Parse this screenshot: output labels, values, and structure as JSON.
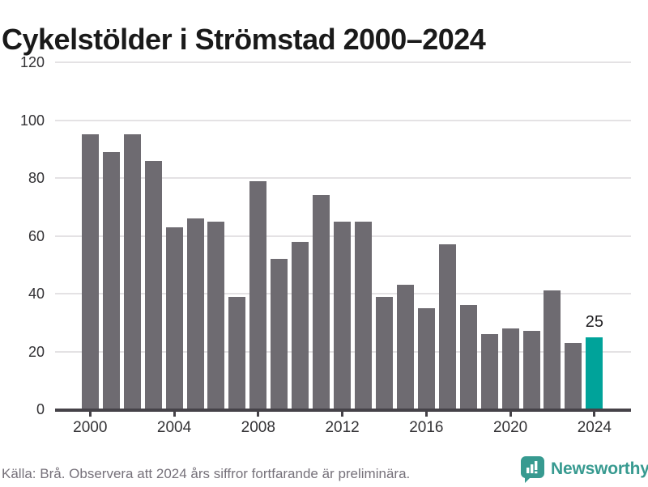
{
  "title": "Cykelstölder i Strömstad 2000–2024",
  "chart_data": {
    "type": "bar",
    "title": "Cykelstölder i Strömstad 2000–2024",
    "x": [
      2000,
      2001,
      2002,
      2003,
      2004,
      2005,
      2006,
      2007,
      2008,
      2009,
      2010,
      2011,
      2012,
      2013,
      2014,
      2015,
      2016,
      2017,
      2018,
      2019,
      2020,
      2021,
      2022,
      2023,
      2024
    ],
    "values": [
      95,
      89,
      95,
      86,
      63,
      66,
      65,
      39,
      79,
      52,
      58,
      74,
      65,
      65,
      39,
      43,
      35,
      57,
      36,
      26,
      28,
      27,
      41,
      23,
      25
    ],
    "xlabel": "",
    "ylabel": "",
    "ylim": [
      0,
      120
    ],
    "yticks": [
      0,
      20,
      40,
      60,
      80,
      100,
      120
    ],
    "xticks": [
      2000,
      2004,
      2008,
      2012,
      2016,
      2020,
      2024
    ],
    "grid": true,
    "legend": "none",
    "bar_color": "#6e6b71",
    "highlight": {
      "year": 2024,
      "color": "#00a39a",
      "label": "25"
    }
  },
  "footer": {
    "source_note": "Källa: Brå. Observera att 2024 års siffror fortfarande är preliminära.",
    "brand_name": "Newsworthy",
    "brand_color": "#379a90"
  },
  "colors": {
    "bar": "#6e6b71",
    "highlight": "#00a39a",
    "gridline": "#e4e2e4",
    "axis": "#454248",
    "title_text": "#1a1a1a",
    "tick_text": "#333235",
    "footer_text": "#76717a"
  }
}
